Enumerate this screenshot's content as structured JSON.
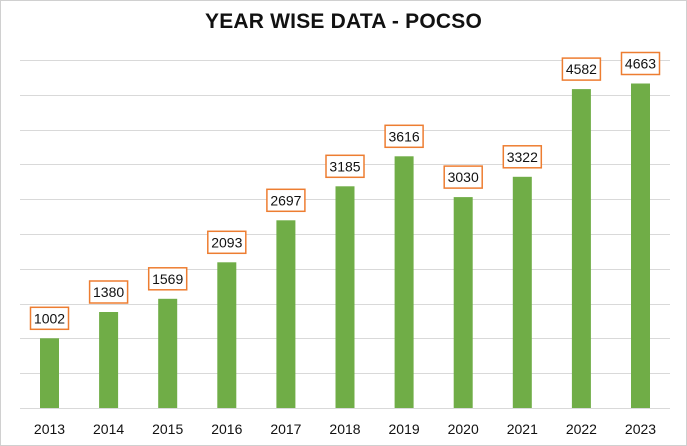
{
  "chart_data": {
    "type": "bar",
    "title": "YEAR WISE DATA - POCSO",
    "xlabel": "",
    "ylabel": "",
    "categories": [
      "2013",
      "2014",
      "2015",
      "2016",
      "2017",
      "2018",
      "2019",
      "2020",
      "2021",
      "2022",
      "2023"
    ],
    "values": [
      1002,
      1380,
      1569,
      2093,
      2697,
      3185,
      3616,
      3030,
      3322,
      4582,
      4663
    ],
    "ylim": [
      0,
      5000
    ],
    "y_axis_tick_labels_shown": false,
    "grid": true,
    "legend": "none",
    "colors": {
      "bar": "#70ad47",
      "label_border": "#ed7d31",
      "gridline": "#d9d9d9",
      "text": "#111111"
    }
  }
}
